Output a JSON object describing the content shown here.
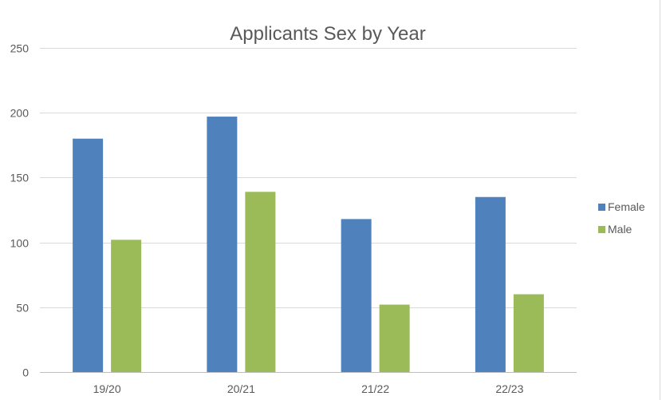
{
  "chart_data": {
    "type": "bar",
    "title": "Applicants Sex by Year",
    "categories": [
      "19/20",
      "20/21",
      "21/22",
      "22/23"
    ],
    "series": [
      {
        "name": "Female",
        "values": [
          180,
          197,
          118,
          135
        ],
        "color": "#4f81bd"
      },
      {
        "name": "Male",
        "values": [
          102,
          139,
          52,
          60
        ],
        "color": "#9bbb59"
      }
    ],
    "ylim": [
      0,
      250
    ],
    "yticks": [
      0,
      50,
      100,
      150,
      200,
      250
    ],
    "grid": true,
    "legend": "right"
  }
}
